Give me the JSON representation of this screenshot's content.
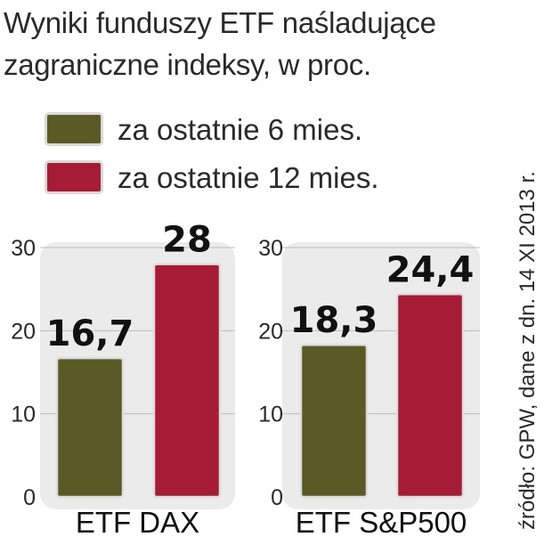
{
  "title": "Wyniki funduszy ETF naśladujące zagraniczne indeksy, w proc.",
  "source": "źródło: GPW, dane z dn. 14 XI 2013 r.",
  "colors": {
    "series_6m": "#5a5a26",
    "series_12m": "#a61c34",
    "panel_bg": "#ebebeb",
    "grid": "#bdbdbd"
  },
  "chart_data": {
    "type": "bar",
    "categories": [
      "ETF DAX",
      "ETF S&P500"
    ],
    "series": [
      {
        "name": "za ostatnie 6 mies.",
        "values": [
          16.7,
          18.3
        ]
      },
      {
        "name": "za ostatnie 12 mies.",
        "values": [
          28,
          24.4
        ]
      }
    ],
    "value_labels": [
      [
        "16,7",
        "18,3"
      ],
      [
        "28",
        "24,4"
      ]
    ],
    "ylim": [
      0,
      30
    ],
    "yticks": [
      "0",
      "10",
      "20",
      "30"
    ],
    "grid": true,
    "legend_position": "top-left"
  }
}
